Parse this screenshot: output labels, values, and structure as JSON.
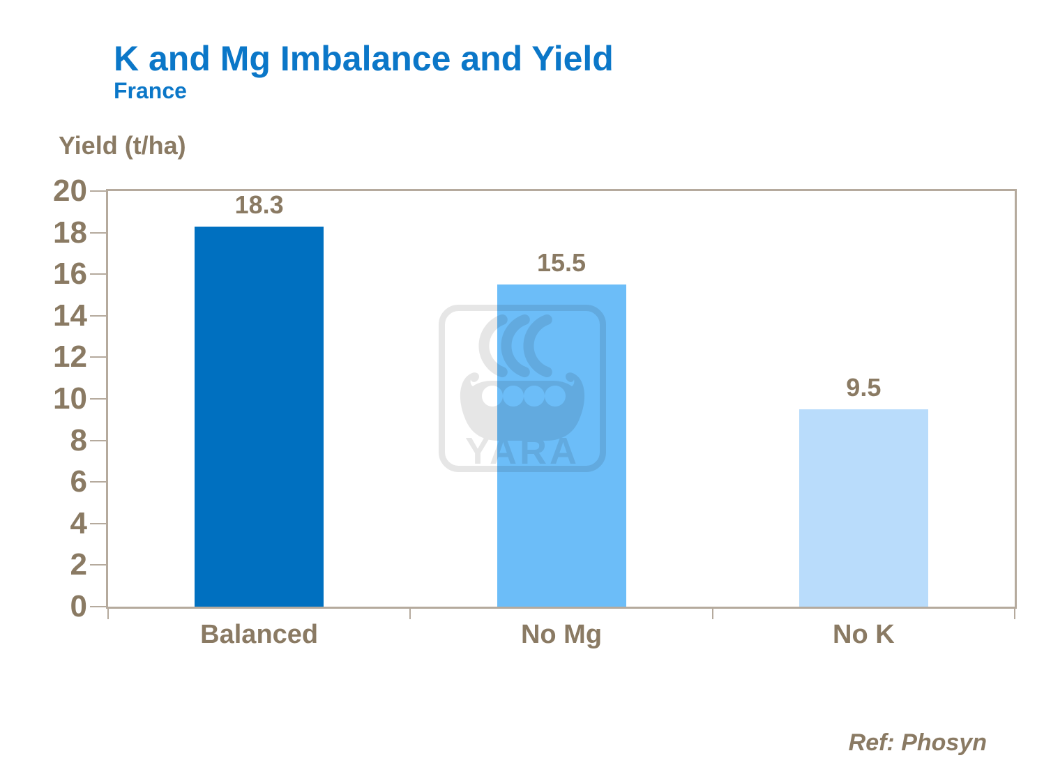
{
  "slide": {
    "background": "#FFFFFF"
  },
  "chart_data": {
    "type": "bar",
    "title": "K and Mg Imbalance and Yield",
    "subtitle": "France",
    "ylabel": "Yield (t/ha)",
    "xlabel": "",
    "categories": [
      "Balanced",
      "No Mg",
      "No K"
    ],
    "values": [
      18.3,
      15.5,
      9.5
    ],
    "data_labels": [
      "18.3",
      "15.5",
      "9.5"
    ],
    "bar_colors": [
      "#0070C0",
      "#6CBDF8",
      "#B9DCFB"
    ],
    "ylim": [
      0,
      20
    ],
    "yticks": [
      0,
      2,
      4,
      6,
      8,
      10,
      12,
      14,
      16,
      18,
      20
    ],
    "grid": false,
    "legend": "none",
    "title_color": "#0B77C8",
    "axis_text_color": "#8A7A63",
    "plot_border_color": "#B5AA9D"
  },
  "watermark": {
    "icon": "yara-viking-ship-logo",
    "text": "YARA",
    "color": "#E6E6E6"
  },
  "footer": {
    "ref": "Ref: Phosyn"
  }
}
